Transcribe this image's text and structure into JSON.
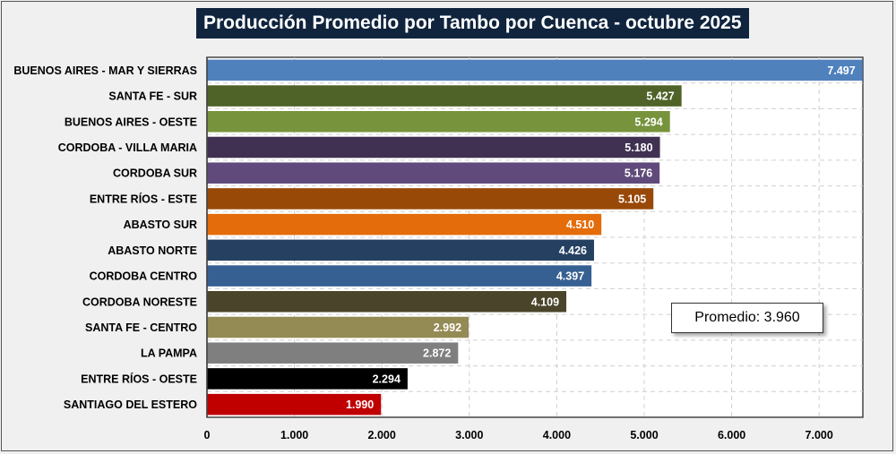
{
  "chart_data": {
    "type": "bar",
    "orientation": "horizontal",
    "title": "Producción Promedio por Tambo por Cuenca - octubre 2025",
    "categories": [
      "BUENOS AIRES - MAR Y SIERRAS",
      "SANTA FE - SUR",
      "BUENOS AIRES - OESTE",
      "CORDOBA - VILLA MARIA",
      "CORDOBA SUR",
      "ENTRE RÍOS - ESTE",
      "ABASTO SUR",
      "ABASTO NORTE",
      "CORDOBA CENTRO",
      "CORDOBA NORESTE",
      "SANTA FE - CENTRO",
      "LA PAMPA",
      "ENTRE RÍOS - OESTE",
      "SANTIAGO DEL ESTERO"
    ],
    "values": [
      7497,
      5427,
      5294,
      5180,
      5176,
      5105,
      4510,
      4426,
      4397,
      4109,
      2992,
      2872,
      2294,
      1990
    ],
    "value_labels": [
      "7.497",
      "5.427",
      "5.294",
      "5.180",
      "5.176",
      "5.105",
      "4.510",
      "4.426",
      "4.397",
      "4.109",
      "2.992",
      "2.872",
      "2.294",
      "1.990"
    ],
    "colors": [
      "#4f81bd",
      "#4f6228",
      "#77933c",
      "#403152",
      "#604a7b",
      "#984807",
      "#e46c0a",
      "#254061",
      "#376092",
      "#4a452a",
      "#948a54",
      "#7f7f7f",
      "#000000",
      "#c00000"
    ],
    "xlim": [
      0,
      7500
    ],
    "xticks": [
      0,
      1000,
      2000,
      3000,
      4000,
      5000,
      6000,
      7000
    ],
    "xtick_labels": [
      "0",
      "1.000",
      "2.000",
      "3.000",
      "4.000",
      "5.000",
      "6.000",
      "7.000"
    ],
    "grid": true,
    "annotation": "Promedio: 3.960"
  }
}
